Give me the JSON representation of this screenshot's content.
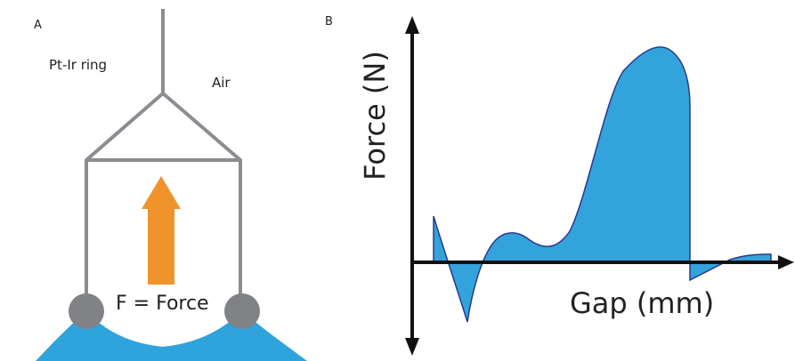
{
  "panel_a": {
    "label": "A",
    "ring_label": "Pt-Ir ring",
    "air_label": "Air",
    "force_label": "F = Force"
  },
  "panel_b": {
    "label": "B",
    "y_axis_label": "Force (N)",
    "x_axis_label": "Gap (mm)"
  }
}
